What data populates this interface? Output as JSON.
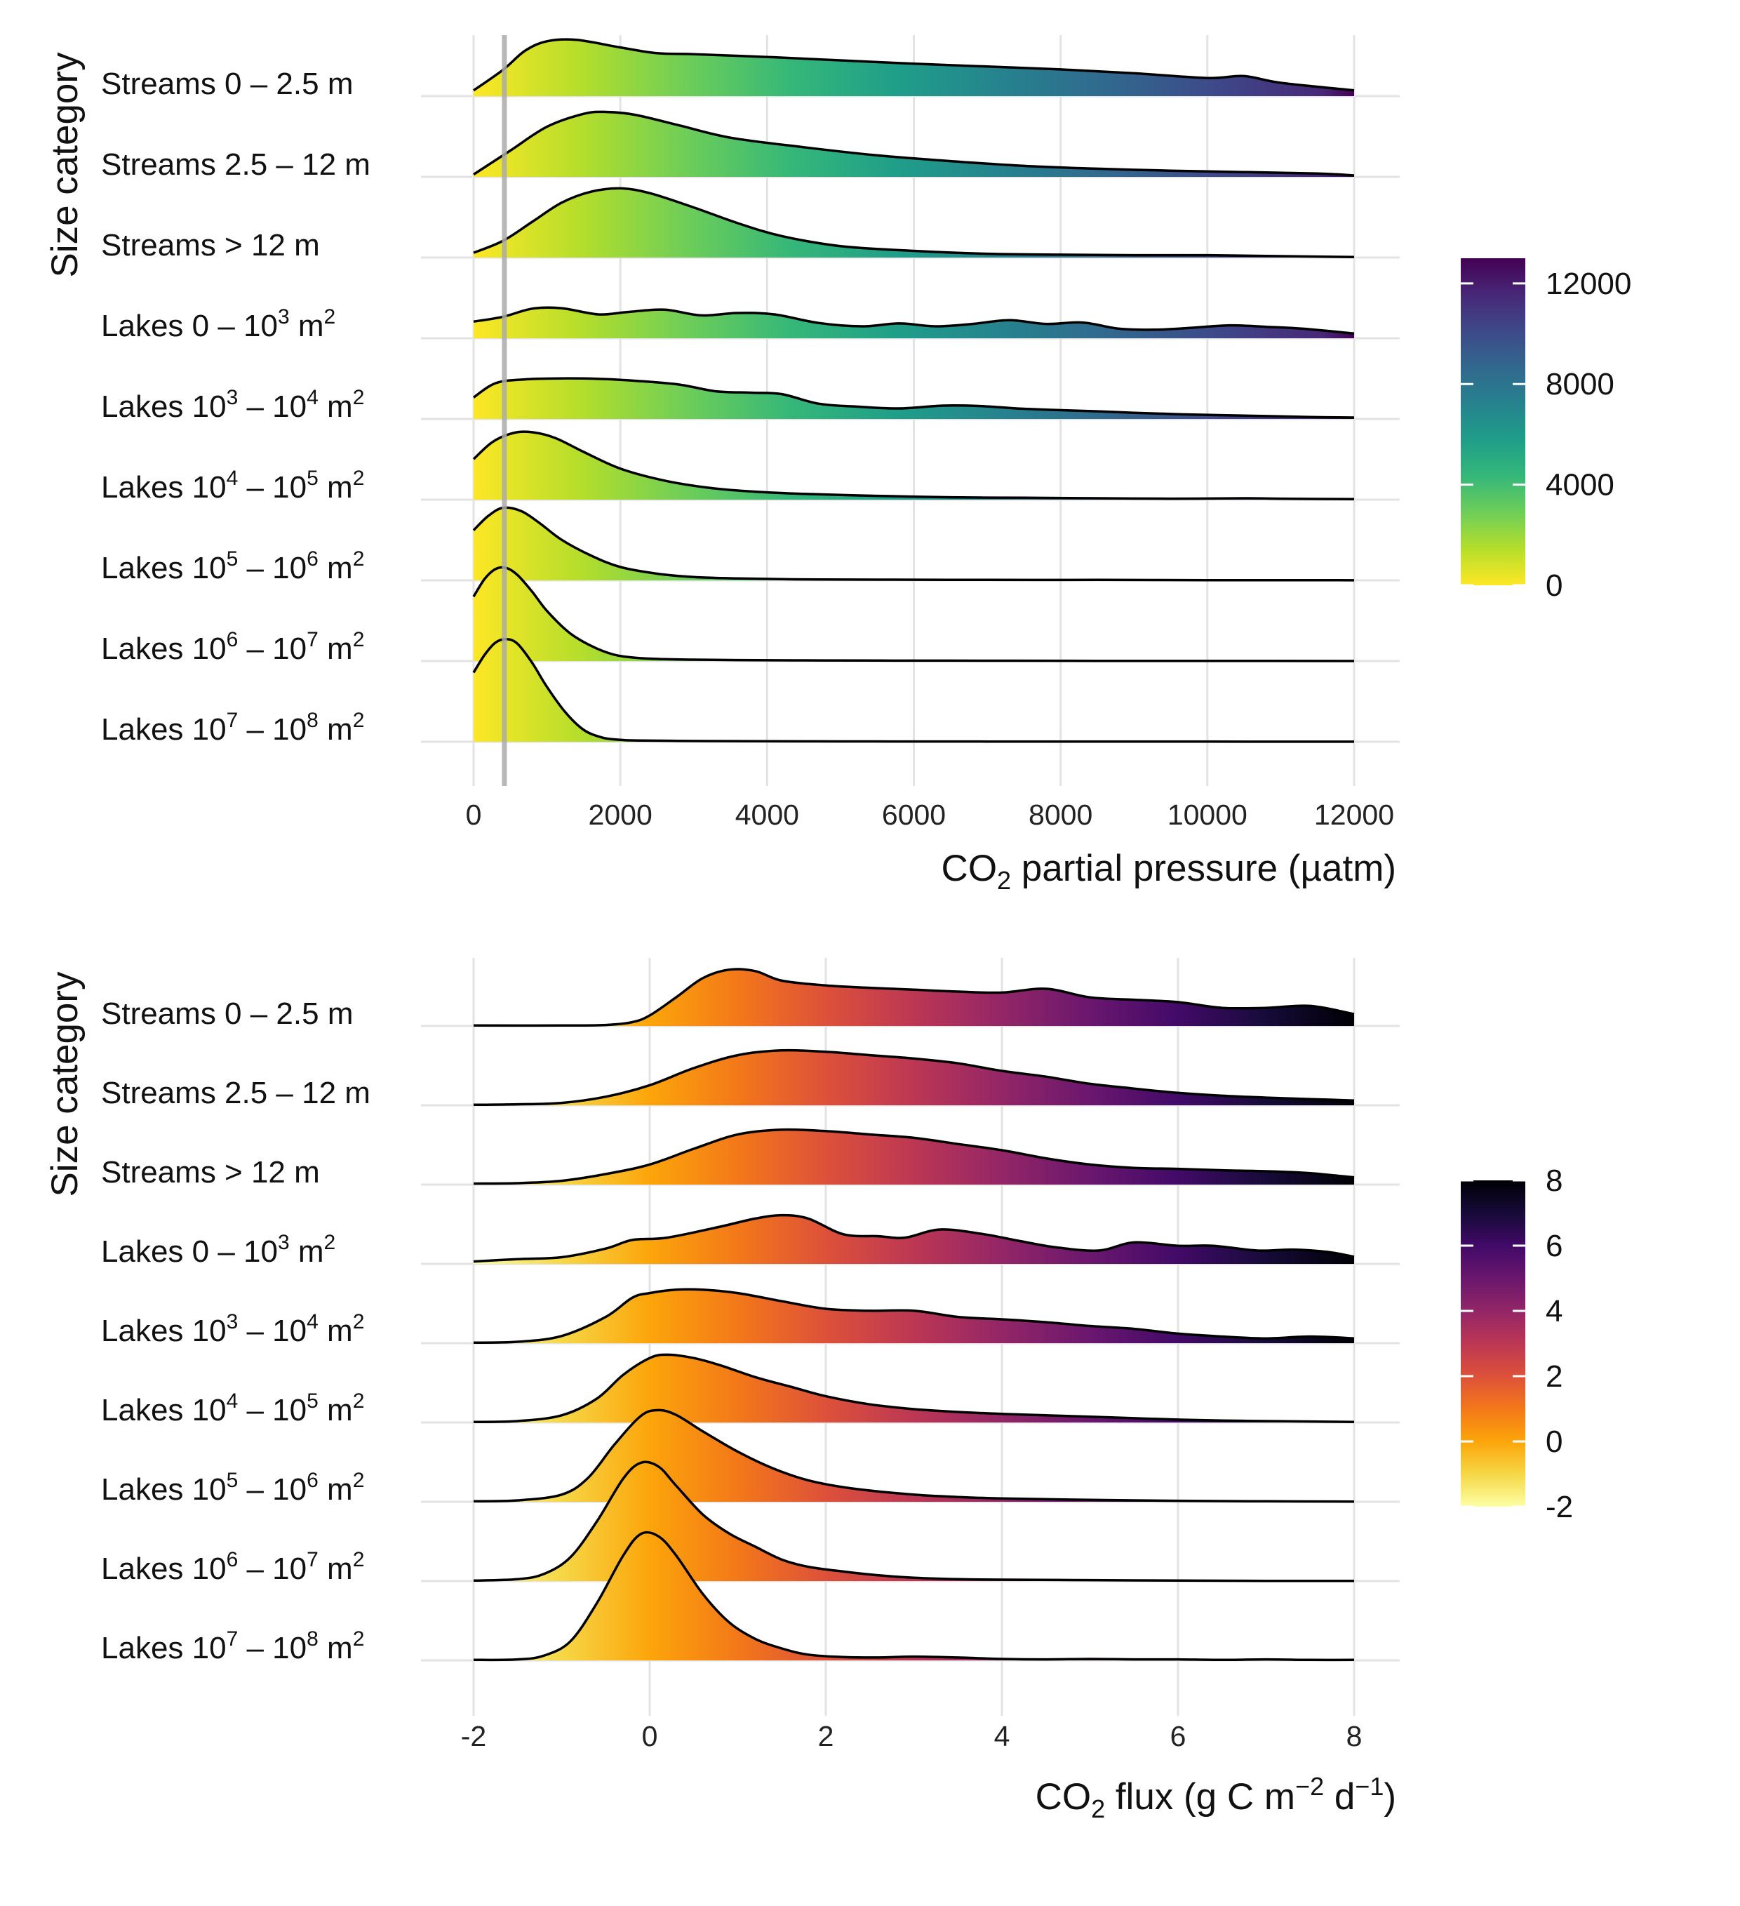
{
  "chart_data": [
    {
      "type": "ridgeline",
      "title": "",
      "ylabel": "Size category",
      "xlabel": {
        "main": "CO",
        "sub": "2",
        "rest": " partial pressure (µatm)"
      },
      "xlim": [
        0,
        12000
      ],
      "xticks": [
        "0",
        "2000",
        "4000",
        "6000",
        "8000",
        "10000",
        "12000"
      ],
      "xtick_values": [
        0,
        2000,
        4000,
        6000,
        8000,
        10000,
        12000
      ],
      "reference_line_x": 420,
      "colormap": "viridis",
      "legend": {
        "ticks": [
          "12000",
          "8000",
          "4000",
          "0"
        ],
        "tick_values": [
          12000,
          8000,
          4000,
          0
        ],
        "range": [
          0,
          13000
        ],
        "placement": "right"
      },
      "categories": [
        {
          "label": {
            "pre": "Streams 0 – 2.5 m"
          }
        },
        {
          "label": {
            "pre": "Streams 2.5 – 12 m"
          }
        },
        {
          "label": {
            "pre": "Streams > 12 m"
          }
        },
        {
          "label": {
            "pre": "Lakes 0 – 10",
            "sup1": "3",
            "mid": " m",
            "sup2": "2"
          }
        },
        {
          "label": {
            "pre": "Lakes 10",
            "sup1": "3",
            "mid": " – 10",
            "sup2": "4",
            "post": " m",
            "sup3": "2"
          }
        },
        {
          "label": {
            "pre": "Lakes 10",
            "sup1": "4",
            "mid": " – 10",
            "sup2": "5",
            "post": " m",
            "sup3": "2"
          }
        },
        {
          "label": {
            "pre": "Lakes 10",
            "sup1": "5",
            "mid": " – 10",
            "sup2": "6",
            "post": " m",
            "sup3": "2"
          }
        },
        {
          "label": {
            "pre": "Lakes 10",
            "sup1": "6",
            "mid": " – 10",
            "sup2": "7",
            "post": " m",
            "sup3": "2"
          }
        },
        {
          "label": {
            "pre": "Lakes 10",
            "sup1": "7",
            "mid": " – 10",
            "sup2": "8",
            "post": " m",
            "sup3": "2"
          }
        }
      ],
      "series": [
        {
          "x": [
            0,
            400,
            700,
            1000,
            1400,
            2000,
            2500,
            3000,
            4000,
            5000,
            6000,
            7000,
            8000,
            9000,
            10000,
            10500,
            11000,
            12000
          ],
          "y": [
            0.12,
            0.55,
            0.95,
            1.15,
            1.18,
            1.02,
            0.9,
            0.88,
            0.82,
            0.75,
            0.68,
            0.62,
            0.56,
            0.48,
            0.38,
            0.42,
            0.28,
            0.12
          ]
        },
        {
          "x": [
            0,
            500,
            1000,
            1500,
            1800,
            2200,
            2800,
            3500,
            4500,
            5500,
            6500,
            7500,
            8500,
            9500,
            10500,
            11500,
            12000
          ],
          "y": [
            0.05,
            0.55,
            1.05,
            1.32,
            1.36,
            1.3,
            1.08,
            0.82,
            0.62,
            0.45,
            0.33,
            0.23,
            0.17,
            0.13,
            0.1,
            0.07,
            0.03
          ]
        },
        {
          "x": [
            0,
            400,
            800,
            1200,
            1600,
            2000,
            2400,
            3000,
            3600,
            4200,
            5000,
            6000,
            7000,
            8000,
            9000,
            10000,
            11000,
            12000
          ],
          "y": [
            0.1,
            0.35,
            0.75,
            1.15,
            1.38,
            1.45,
            1.35,
            1.05,
            0.72,
            0.45,
            0.24,
            0.14,
            0.08,
            0.06,
            0.05,
            0.05,
            0.03,
            0.01
          ]
        },
        {
          "x": [
            0,
            400,
            800,
            1200,
            1700,
            2100,
            2600,
            3100,
            3600,
            4100,
            4700,
            5300,
            5800,
            6300,
            6800,
            7300,
            7800,
            8300,
            8800,
            9300,
            9800,
            10300,
            10800,
            11300,
            12000
          ],
          "y": [
            0.35,
            0.45,
            0.62,
            0.63,
            0.5,
            0.55,
            0.6,
            0.48,
            0.53,
            0.5,
            0.32,
            0.25,
            0.31,
            0.25,
            0.3,
            0.38,
            0.3,
            0.33,
            0.2,
            0.18,
            0.22,
            0.27,
            0.24,
            0.2,
            0.1
          ]
        },
        {
          "x": [
            0,
            300,
            700,
            1200,
            1700,
            2200,
            2800,
            3300,
            3800,
            4200,
            4700,
            5200,
            5800,
            6400,
            6900,
            7400,
            7900,
            8500,
            9000,
            9600,
            10200,
            10800,
            11400,
            12000
          ],
          "y": [
            0.45,
            0.75,
            0.83,
            0.85,
            0.84,
            0.8,
            0.72,
            0.58,
            0.55,
            0.52,
            0.32,
            0.26,
            0.22,
            0.28,
            0.27,
            0.22,
            0.19,
            0.16,
            0.13,
            0.1,
            0.08,
            0.06,
            0.04,
            0.03
          ]
        },
        {
          "x": [
            0,
            250,
            500,
            750,
            1100,
            1500,
            2000,
            2600,
            3200,
            3800,
            4500,
            5500,
            6500,
            7500,
            8500,
            9500,
            10500,
            11000,
            12000
          ],
          "y": [
            0.85,
            1.2,
            1.38,
            1.42,
            1.3,
            1.0,
            0.65,
            0.4,
            0.25,
            0.17,
            0.12,
            0.08,
            0.05,
            0.04,
            0.03,
            0.02,
            0.03,
            0.02,
            0.01
          ]
        },
        {
          "x": [
            0,
            200,
            400,
            650,
            900,
            1200,
            1600,
            2000,
            2500,
            3000,
            3600,
            4500,
            5500,
            7000,
            8500,
            10000,
            11500,
            12000
          ],
          "y": [
            1.05,
            1.35,
            1.52,
            1.45,
            1.2,
            0.85,
            0.52,
            0.28,
            0.14,
            0.07,
            0.04,
            0.02,
            0.015,
            0.01,
            0.01,
            0.005,
            0.004,
            0.002
          ]
        },
        {
          "x": [
            0,
            150,
            300,
            450,
            600,
            800,
            1000,
            1300,
            1600,
            1900,
            2200,
            2600,
            3000,
            3600,
            4500,
            5500,
            7000,
            8500,
            10000,
            12000
          ],
          "y": [
            1.35,
            1.72,
            1.93,
            1.95,
            1.8,
            1.45,
            1.05,
            0.6,
            0.32,
            0.14,
            0.07,
            0.04,
            0.03,
            0.02,
            0.015,
            0.01,
            0.008,
            0.005,
            0.004,
            0.002
          ]
        },
        {
          "x": [
            0,
            150,
            300,
            450,
            600,
            800,
            1000,
            1250,
            1500,
            1750,
            2000,
            2300,
            2700,
            3200,
            4000,
            5000,
            6000,
            7000,
            8000,
            9000,
            10000,
            11000,
            12000
          ],
          "y": [
            1.45,
            1.82,
            2.08,
            2.15,
            2.05,
            1.65,
            1.15,
            0.62,
            0.25,
            0.09,
            0.04,
            0.025,
            0.02,
            0.015,
            0.01,
            0.008,
            0.006,
            0.005,
            0.004,
            0.003,
            0.003,
            0.002,
            0.001
          ]
        }
      ]
    },
    {
      "type": "ridgeline",
      "title": "",
      "ylabel": "Size category",
      "xlabel": {
        "main": "CO",
        "sub": "2",
        "rest": " flux (g C m",
        "sup1": "−2",
        "rest2": " d",
        "sup2": "−1",
        "end": ")"
      },
      "xlim": [
        -2,
        8
      ],
      "xticks": [
        "-2",
        "0",
        "2",
        "4",
        "6",
        "8"
      ],
      "xtick_values": [
        -2,
        0,
        2,
        4,
        6,
        8
      ],
      "colormap": "inferno",
      "legend": {
        "ticks": [
          "8",
          "6",
          "4",
          "2",
          "0",
          "-2"
        ],
        "tick_values": [
          8,
          6,
          4,
          2,
          0,
          -2
        ],
        "range": [
          -2,
          8
        ],
        "placement": "right"
      },
      "categories": [
        {
          "label": {
            "pre": "Streams 0 – 2.5 m"
          }
        },
        {
          "label": {
            "pre": "Streams 2.5 – 12 m"
          }
        },
        {
          "label": {
            "pre": "Streams > 12 m"
          }
        },
        {
          "label": {
            "pre": "Lakes 0 – 10",
            "sup1": "3",
            "mid": " m",
            "sup2": "2"
          }
        },
        {
          "label": {
            "pre": "Lakes 10",
            "sup1": "3",
            "mid": " – 10",
            "sup2": "4",
            "post": " m",
            "sup3": "2"
          }
        },
        {
          "label": {
            "pre": "Lakes 10",
            "sup1": "4",
            "mid": " – 10",
            "sup2": "5",
            "post": " m",
            "sup3": "2"
          }
        },
        {
          "label": {
            "pre": "Lakes 10",
            "sup1": "5",
            "mid": " – 10",
            "sup2": "6",
            "post": " m",
            "sup3": "2"
          }
        },
        {
          "label": {
            "pre": "Lakes 10",
            "sup1": "6",
            "mid": " – 10",
            "sup2": "7",
            "post": " m",
            "sup3": "2"
          }
        },
        {
          "label": {
            "pre": "Lakes 10",
            "sup1": "7",
            "mid": " – 10",
            "sup2": "8",
            "post": " m",
            "sup3": "2"
          }
        }
      ],
      "series": [
        {
          "x": [
            -2,
            -1,
            -0.5,
            -0.2,
            0,
            0.3,
            0.6,
            0.9,
            1.2,
            1.5,
            2,
            2.5,
            3,
            3.5,
            4,
            4.5,
            5,
            5.5,
            6,
            6.5,
            7,
            7.5,
            8
          ],
          "y": [
            0.01,
            0.01,
            0.02,
            0.08,
            0.22,
            0.6,
            1.0,
            1.18,
            1.15,
            0.95,
            0.85,
            0.8,
            0.76,
            0.72,
            0.7,
            0.78,
            0.6,
            0.55,
            0.5,
            0.38,
            0.38,
            0.42,
            0.25
          ]
        },
        {
          "x": [
            -2,
            -1.5,
            -1,
            -0.5,
            0,
            0.5,
            1,
            1.5,
            2,
            2.5,
            3,
            3.5,
            4,
            4.5,
            5,
            5.5,
            6,
            6.5,
            7,
            7.5,
            8
          ],
          "y": [
            0.01,
            0.02,
            0.05,
            0.18,
            0.42,
            0.78,
            1.05,
            1.15,
            1.12,
            1.05,
            0.98,
            0.88,
            0.72,
            0.6,
            0.45,
            0.35,
            0.26,
            0.2,
            0.16,
            0.13,
            0.1
          ]
        },
        {
          "x": [
            -2,
            -1.5,
            -1,
            -0.5,
            0,
            0.5,
            1,
            1.5,
            2,
            2.5,
            3,
            3.5,
            4,
            4.5,
            5,
            5.5,
            6,
            6.5,
            7,
            7.5,
            8
          ],
          "y": [
            0.02,
            0.03,
            0.08,
            0.22,
            0.42,
            0.75,
            1.05,
            1.15,
            1.12,
            1.05,
            0.98,
            0.85,
            0.72,
            0.55,
            0.42,
            0.35,
            0.33,
            0.3,
            0.28,
            0.24,
            0.15
          ]
        },
        {
          "x": [
            -2,
            -1.5,
            -1,
            -0.5,
            -0.2,
            0.2,
            0.8,
            1.2,
            1.5,
            1.8,
            2.2,
            2.6,
            2.9,
            3.3,
            3.8,
            4.2,
            4.6,
            5.1,
            5.5,
            6,
            6.4,
            6.9,
            7.3,
            7.7,
            8
          ],
          "y": [
            0.05,
            0.1,
            0.14,
            0.32,
            0.5,
            0.55,
            0.78,
            0.95,
            1.02,
            0.95,
            0.62,
            0.58,
            0.55,
            0.72,
            0.62,
            0.48,
            0.35,
            0.28,
            0.45,
            0.38,
            0.38,
            0.28,
            0.3,
            0.25,
            0.15
          ]
        },
        {
          "x": [
            -2,
            -1.5,
            -1,
            -0.5,
            -0.2,
            0,
            0.3,
            0.6,
            1,
            1.5,
            2,
            2.5,
            3,
            3.5,
            4,
            4.5,
            5,
            5.5,
            6,
            6.5,
            7,
            7.5,
            8
          ],
          "y": [
            0.01,
            0.03,
            0.15,
            0.55,
            0.95,
            1.05,
            1.12,
            1.12,
            1.05,
            0.88,
            0.72,
            0.68,
            0.68,
            0.55,
            0.5,
            0.44,
            0.36,
            0.3,
            0.2,
            0.14,
            0.1,
            0.14,
            0.1
          ]
        },
        {
          "x": [
            -2,
            -1.5,
            -1,
            -0.6,
            -0.3,
            0,
            0.2,
            0.5,
            0.8,
            1.2,
            1.6,
            2,
            2.5,
            3,
            3.5,
            4,
            4.5,
            5,
            5.5,
            6,
            6.5,
            7,
            7.5,
            8
          ],
          "y": [
            0.01,
            0.03,
            0.15,
            0.5,
            1.0,
            1.35,
            1.42,
            1.35,
            1.2,
            0.95,
            0.75,
            0.55,
            0.38,
            0.28,
            0.22,
            0.18,
            0.15,
            0.12,
            0.09,
            0.06,
            0.04,
            0.03,
            0.02,
            0.01
          ]
        },
        {
          "x": [
            -2,
            -1.5,
            -1,
            -0.7,
            -0.4,
            -0.1,
            0.1,
            0.3,
            0.6,
            1,
            1.4,
            1.8,
            2.3,
            3,
            3.5,
            4,
            5,
            6,
            7,
            8
          ],
          "y": [
            0.01,
            0.03,
            0.15,
            0.5,
            1.2,
            1.8,
            1.92,
            1.82,
            1.48,
            1.05,
            0.7,
            0.45,
            0.28,
            0.15,
            0.1,
            0.07,
            0.04,
            0.02,
            0.01,
            0.005
          ]
        },
        {
          "x": [
            -2,
            -1.5,
            -1.2,
            -0.9,
            -0.6,
            -0.3,
            -0.1,
            0.1,
            0.3,
            0.6,
            0.9,
            1.2,
            1.5,
            1.8,
            2.2,
            2.6,
            3,
            3.5,
            4,
            5,
            6,
            7,
            8
          ],
          "y": [
            0.01,
            0.04,
            0.15,
            0.5,
            1.25,
            2.15,
            2.48,
            2.4,
            2.0,
            1.4,
            1.0,
            0.72,
            0.45,
            0.3,
            0.2,
            0.12,
            0.07,
            0.04,
            0.03,
            0.02,
            0.01,
            0.005,
            0.003
          ]
        },
        {
          "x": [
            -2,
            -1.5,
            -1.2,
            -0.9,
            -0.6,
            -0.3,
            -0.1,
            0.1,
            0.3,
            0.6,
            0.9,
            1.2,
            1.5,
            1.8,
            2.2,
            2.6,
            3,
            3.5,
            4,
            4.5,
            5,
            5.5,
            6,
            6.5,
            7,
            7.5,
            8
          ],
          "y": [
            0.01,
            0.02,
            0.1,
            0.4,
            1.2,
            2.2,
            2.65,
            2.6,
            2.2,
            1.4,
            0.8,
            0.45,
            0.25,
            0.12,
            0.07,
            0.06,
            0.08,
            0.06,
            0.03,
            0.02,
            0.03,
            0.02,
            0.02,
            0.01,
            0.02,
            0.01,
            0.01
          ]
        }
      ]
    }
  ]
}
